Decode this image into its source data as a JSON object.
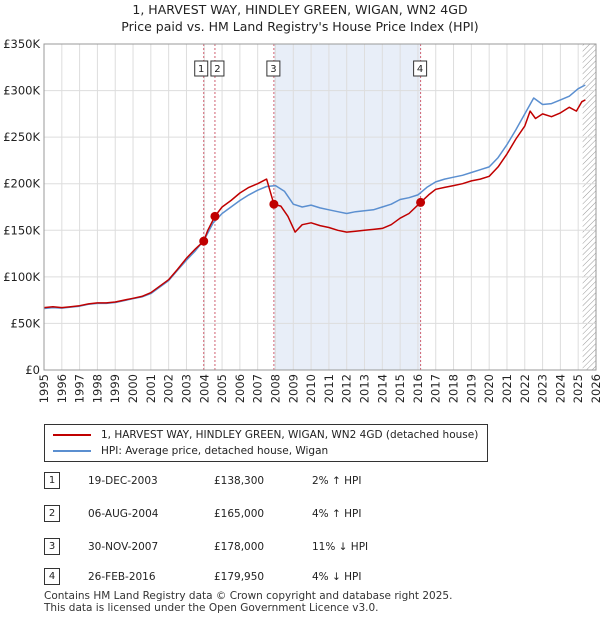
{
  "title_line1": "1, HARVEST WAY, HINDLEY GREEN, WIGAN, WN2 4GD",
  "title_line2": "Price paid vs. HM Land Registry's House Price Index (HPI)",
  "legend": {
    "property": "1, HARVEST WAY, HINDLEY GREEN, WIGAN, WN2 4GD (detached house)",
    "hpi": "HPI: Average price, detached house, Wigan"
  },
  "sales": [
    {
      "num": "1",
      "date": "19-DEC-2003",
      "price": "£138,300",
      "hpi": "2% ↑ HPI"
    },
    {
      "num": "2",
      "date": "06-AUG-2004",
      "price": "£165,000",
      "hpi": "4% ↑ HPI"
    },
    {
      "num": "3",
      "date": "30-NOV-2007",
      "price": "£178,000",
      "hpi": "11% ↓ HPI"
    },
    {
      "num": "4",
      "date": "26-FEB-2016",
      "price": "£179,950",
      "hpi": "4% ↓ HPI"
    }
  ],
  "footer": {
    "line1": "Contains HM Land Registry data © Crown copyright and database right 2025.",
    "line2": "This data is licensed under the Open Government Licence v3.0."
  },
  "colors": {
    "property": "#c00000",
    "hpi": "#5b8fd0",
    "band": "#e8eef8",
    "marker_line": "#d06070",
    "grid": "#dddddd"
  },
  "chart_data": {
    "type": "line",
    "title": "1, HARVEST WAY, HINDLEY GREEN, WIGAN, WN2 4GD",
    "subtitle": "Price paid vs. HM Land Registry's House Price Index (HPI)",
    "xlabel": "",
    "ylabel": "",
    "xlim": [
      1995,
      2026
    ],
    "ylim": [
      0,
      350000
    ],
    "x_ticks": [
      1995,
      1996,
      1997,
      1998,
      1999,
      2000,
      2001,
      2002,
      2003,
      2004,
      2005,
      2006,
      2007,
      2008,
      2009,
      2010,
      2011,
      2012,
      2013,
      2014,
      2015,
      2016,
      2017,
      2018,
      2019,
      2020,
      2021,
      2022,
      2023,
      2024,
      2025,
      2026
    ],
    "y_ticks": [
      {
        "value": 0,
        "label": "£0"
      },
      {
        "value": 50000,
        "label": "£50K"
      },
      {
        "value": 100000,
        "label": "£100K"
      },
      {
        "value": 150000,
        "label": "£150K"
      },
      {
        "value": 200000,
        "label": "£200K"
      },
      {
        "value": 250000,
        "label": "£250K"
      },
      {
        "value": 300000,
        "label": "£300K"
      },
      {
        "value": 350000,
        "label": "£350K"
      }
    ],
    "grid": true,
    "shaded_ranges": [
      [
        2007.92,
        2016.15
      ]
    ],
    "future_hatch_from": 2025.25,
    "series": [
      {
        "name": "1, HARVEST WAY, HINDLEY GREEN, WIGAN, WN2 4GD (detached house)",
        "x": [
          1995,
          1995.5,
          1996,
          1996.5,
          1997,
          1997.5,
          1998,
          1998.5,
          1999,
          1999.5,
          2000,
          2000.5,
          2001,
          2001.5,
          2002,
          2002.5,
          2003,
          2003.5,
          2003.97,
          2004.2,
          2004.6,
          2005,
          2005.5,
          2006,
          2006.5,
          2007,
          2007.5,
          2007.91,
          2008.3,
          2008.7,
          2009.1,
          2009.5,
          2010,
          2010.5,
          2011,
          2011.5,
          2012,
          2012.5,
          2013,
          2013.5,
          2014,
          2014.5,
          2015,
          2015.5,
          2016.15,
          2016.6,
          2017,
          2017.5,
          2018,
          2018.5,
          2019,
          2019.5,
          2020,
          2020.5,
          2021,
          2021.5,
          2022,
          2022.3,
          2022.6,
          2023,
          2023.5,
          2024,
          2024.5,
          2024.9,
          2025.2,
          2025.4
        ],
        "y": [
          67000,
          68000,
          67000,
          68000,
          69000,
          71000,
          72000,
          72000,
          73000,
          75000,
          77000,
          79000,
          83000,
          90000,
          97000,
          108000,
          120000,
          130000,
          138300,
          150000,
          165000,
          175000,
          182000,
          190000,
          196000,
          200000,
          205000,
          178000,
          176000,
          165000,
          148000,
          156000,
          158000,
          155000,
          153000,
          150000,
          148000,
          149000,
          150000,
          151000,
          152000,
          156000,
          163000,
          168000,
          179950,
          188000,
          194000,
          196000,
          198000,
          200000,
          203000,
          205000,
          208000,
          218000,
          232000,
          248000,
          262000,
          278000,
          270000,
          275000,
          272000,
          276000,
          282000,
          278000,
          288000,
          290000
        ]
      },
      {
        "name": "HPI: Average price, detached house, Wigan",
        "x": [
          1995,
          1995.5,
          1996,
          1996.5,
          1997,
          1997.5,
          1998,
          1998.5,
          1999,
          1999.5,
          2000,
          2000.5,
          2001,
          2001.5,
          2002,
          2002.5,
          2003,
          2003.5,
          2004,
          2004.5,
          2005,
          2005.5,
          2006,
          2006.5,
          2007,
          2007.5,
          2008,
          2008.5,
          2009,
          2009.5,
          2010,
          2010.5,
          2011,
          2011.5,
          2012,
          2012.5,
          2013,
          2013.5,
          2014,
          2014.5,
          2015,
          2015.5,
          2016,
          2016.5,
          2017,
          2017.5,
          2018,
          2018.5,
          2019,
          2019.5,
          2020,
          2020.5,
          2021,
          2021.5,
          2022,
          2022.5,
          2023,
          2023.5,
          2024,
          2024.5,
          2025,
          2025.4
        ],
        "y": [
          66000,
          67000,
          66500,
          67500,
          68500,
          70500,
          71500,
          71500,
          72500,
          74500,
          76500,
          78500,
          82000,
          89000,
          96000,
          107000,
          118000,
          128000,
          140000,
          158000,
          168000,
          175000,
          182000,
          188000,
          193000,
          197000,
          198000,
          192000,
          178000,
          175000,
          177000,
          174000,
          172000,
          170000,
          168000,
          170000,
          171000,
          172000,
          175000,
          178000,
          183000,
          185000,
          188000,
          196000,
          202000,
          205000,
          207000,
          209000,
          212000,
          215000,
          218000,
          228000,
          242000,
          258000,
          275000,
          292000,
          285000,
          286000,
          290000,
          294000,
          302000,
          306000
        ]
      }
    ],
    "sales_markers": [
      {
        "label": "1",
        "x": 2003.97,
        "y": 138300
      },
      {
        "label": "2",
        "x": 2004.6,
        "y": 165000
      },
      {
        "label": "3",
        "x": 2007.91,
        "y": 178000
      },
      {
        "label": "4",
        "x": 2016.15,
        "y": 179950
      }
    ]
  }
}
